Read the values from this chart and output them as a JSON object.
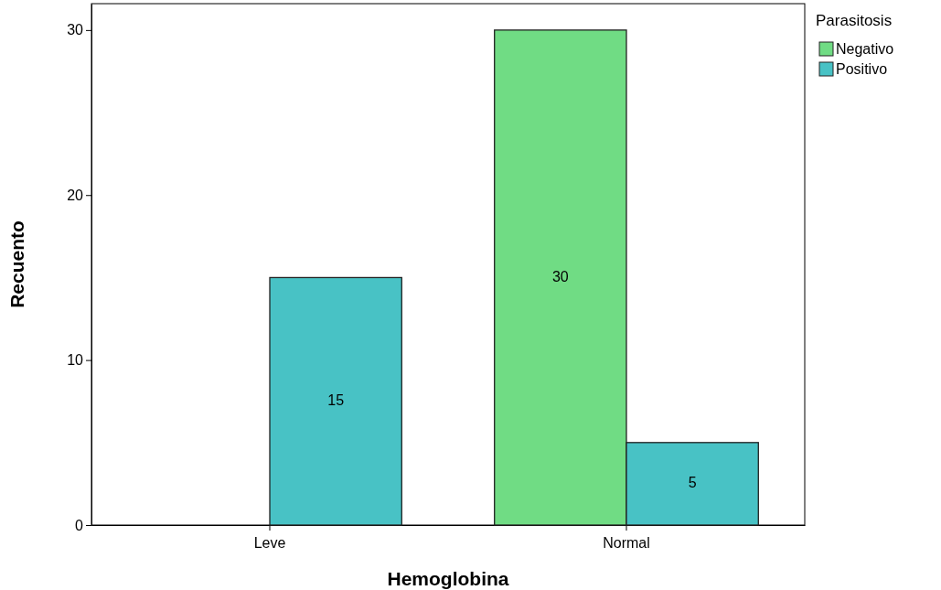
{
  "chart_data": {
    "type": "bar",
    "xlabel": "Hemoglobina",
    "ylabel": "Recuento",
    "legend_title": "Parasitosis",
    "categories": [
      "Leve",
      "Normal"
    ],
    "series": [
      {
        "name": "Negativo",
        "color": "#70dc84",
        "values": [
          0,
          30
        ],
        "value_labels": [
          null,
          "30"
        ]
      },
      {
        "name": "Positivo",
        "color": "#48c2c5",
        "values": [
          15,
          5
        ],
        "value_labels": [
          "15",
          "5"
        ]
      }
    ],
    "ylim": [
      0,
      31.6
    ],
    "yticks": [
      0,
      10,
      20,
      30
    ],
    "grid": false,
    "legend": "top right"
  }
}
